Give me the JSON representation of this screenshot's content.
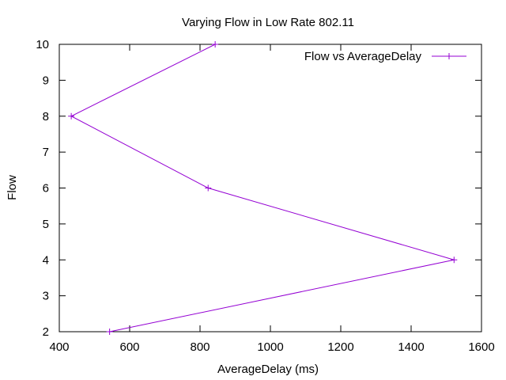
{
  "chart_data": {
    "type": "line",
    "title": "Varying Flow in Low Rate 802.11",
    "xlabel": "AverageDelay (ms)",
    "ylabel": "Flow",
    "xlim": [
      400,
      1600
    ],
    "ylim": [
      2,
      10
    ],
    "xticks": [
      400,
      600,
      800,
      1000,
      1200,
      1400,
      1600
    ],
    "yticks": [
      2,
      3,
      4,
      5,
      6,
      7,
      8,
      9,
      10
    ],
    "grid": false,
    "legend_position": "top-right",
    "series": [
      {
        "name": "Flow vs AverageDelay",
        "color": "#9400d3",
        "marker": "plus",
        "points": [
          {
            "x": 543,
            "y": 2
          },
          {
            "x": 1522,
            "y": 4
          },
          {
            "x": 823,
            "y": 6
          },
          {
            "x": 434,
            "y": 8
          },
          {
            "x": 843,
            "y": 10
          }
        ]
      }
    ]
  }
}
